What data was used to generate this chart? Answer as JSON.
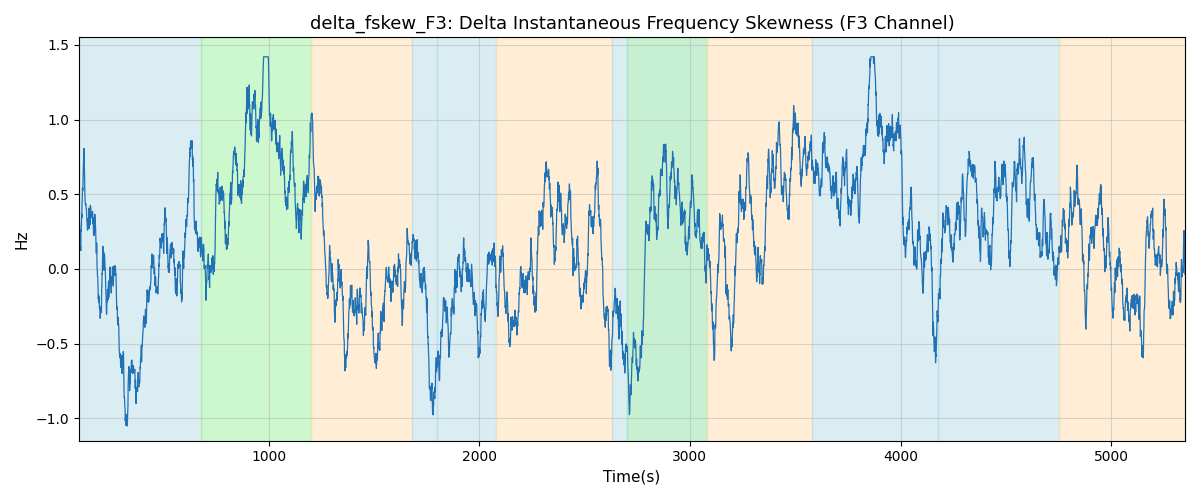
{
  "title": "delta_fskew_F3: Delta Instantaneous Frequency Skewness (F3 Channel)",
  "xlabel": "Time(s)",
  "ylabel": "Hz",
  "ylim": [
    -1.15,
    1.55
  ],
  "xlim": [
    100,
    5350
  ],
  "line_color": "#2171b5",
  "line_width": 0.9,
  "background_bands": [
    {
      "xstart": 100,
      "xend": 680,
      "color": "#add8e6",
      "alpha": 0.45
    },
    {
      "xstart": 680,
      "xend": 1200,
      "color": "#90ee90",
      "alpha": 0.45
    },
    {
      "xstart": 1200,
      "xend": 1680,
      "color": "#ffdead",
      "alpha": 0.5
    },
    {
      "xstart": 1680,
      "xend": 1800,
      "color": "#add8e6",
      "alpha": 0.45
    },
    {
      "xstart": 1800,
      "xend": 2080,
      "color": "#add8e6",
      "alpha": 0.45
    },
    {
      "xstart": 2080,
      "xend": 2630,
      "color": "#ffdead",
      "alpha": 0.5
    },
    {
      "xstart": 2630,
      "xend": 2700,
      "color": "#add8e6",
      "alpha": 0.45
    },
    {
      "xstart": 2700,
      "xend": 3080,
      "color": "#90ee90",
      "alpha": 0.45
    },
    {
      "xstart": 2700,
      "xend": 3080,
      "color": "#add8e6",
      "alpha": 0.2
    },
    {
      "xstart": 3080,
      "xend": 3580,
      "color": "#ffdead",
      "alpha": 0.5
    },
    {
      "xstart": 3580,
      "xend": 4180,
      "color": "#add8e6",
      "alpha": 0.45
    },
    {
      "xstart": 4180,
      "xend": 4750,
      "color": "#add8e6",
      "alpha": 0.45
    },
    {
      "xstart": 4750,
      "xend": 5350,
      "color": "#ffdead",
      "alpha": 0.5
    }
  ],
  "yticks": [
    -1.0,
    -0.5,
    0.0,
    0.5,
    1.0,
    1.5
  ],
  "xticks": [
    1000,
    2000,
    3000,
    4000,
    5000
  ],
  "grid_color": "#bbbbbb",
  "grid_alpha": 0.6,
  "grid_linewidth": 0.8,
  "seed": 12,
  "title_fontsize": 13,
  "axis_label_fontsize": 11
}
